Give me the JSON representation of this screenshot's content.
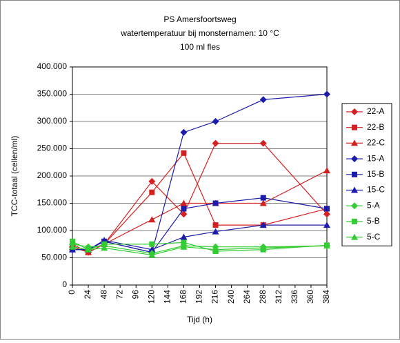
{
  "chart_data": {
    "type": "line",
    "title": [
      "PS Amersfoortsweg",
      "watertemperatuur bij monsternamen: 10 °C",
      "100 ml fles"
    ],
    "xlabel": "Tijd (h)",
    "ylabel": "TCC-totaal (cellen/ml)",
    "x": [
      0,
      24,
      48,
      120,
      168,
      216,
      288,
      384
    ],
    "xlim": [
      0,
      384
    ],
    "xticks": [
      0,
      24,
      48,
      72,
      96,
      120,
      144,
      168,
      192,
      216,
      240,
      264,
      288,
      312,
      336,
      360,
      384
    ],
    "ylim": [
      0,
      400000
    ],
    "yticks": [
      0,
      {
        "value": 50000,
        "label": "50.000"
      },
      {
        "value": 100000,
        "label": "100.000"
      },
      {
        "value": 150000,
        "label": "150.000"
      },
      {
        "value": 200000,
        "label": "200.000"
      },
      {
        "value": 250000,
        "label": "250.000"
      },
      {
        "value": 300000,
        "label": "300.000"
      },
      {
        "value": 350000,
        "label": "350.000"
      },
      {
        "value": 400000,
        "label": "400.000"
      }
    ],
    "grid": true,
    "legend": "right",
    "series": [
      {
        "name": "22-A",
        "color": "#d42020",
        "marker": "diamond",
        "values": [
          70000,
          60000,
          75000,
          190000,
          130000,
          260000,
          260000,
          130000
        ]
      },
      {
        "name": "22-B",
        "color": "#d42020",
        "marker": "square",
        "values": [
          75000,
          60000,
          75000,
          170000,
          242000,
          110000,
          110000,
          140000
        ]
      },
      {
        "name": "22-C",
        "color": "#d42020",
        "marker": "triangle",
        "values": [
          70000,
          60000,
          75000,
          120000,
          150000,
          150000,
          150000,
          210000
        ]
      },
      {
        "name": "15-A",
        "color": "#1c1caa",
        "marker": "diamond",
        "values": [
          65000,
          65000,
          80000,
          60000,
          280000,
          300000,
          340000,
          350000
        ]
      },
      {
        "name": "15-B",
        "color": "#1c1caa",
        "marker": "square",
        "values": [
          65000,
          65000,
          80000,
          60000,
          140000,
          150000,
          160000,
          140000
        ]
      },
      {
        "name": "15-C",
        "color": "#1c1caa",
        "marker": "triangle",
        "values": [
          65000,
          65000,
          82000,
          65000,
          88000,
          98000,
          110000,
          110000
        ]
      },
      {
        "name": "5-A",
        "color": "#33cc33",
        "marker": "diamond",
        "values": [
          75000,
          70000,
          72000,
          58000,
          72000,
          70000,
          70000,
          72000
        ]
      },
      {
        "name": "5-B",
        "color": "#33cc33",
        "marker": "square",
        "values": [
          80000,
          65000,
          75000,
          75000,
          78000,
          62000,
          65000,
          73000
        ]
      },
      {
        "name": "5-C",
        "color": "#33cc33",
        "marker": "triangle",
        "values": [
          70000,
          65000,
          68000,
          55000,
          70000,
          65000,
          68000,
          72000
        ]
      }
    ]
  }
}
